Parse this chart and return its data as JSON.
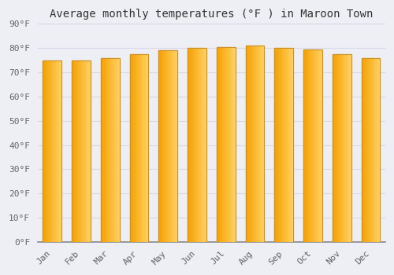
{
  "title": "Average monthly temperatures (°F ) in Maroon Town",
  "months": [
    "Jan",
    "Feb",
    "Mar",
    "Apr",
    "May",
    "Jun",
    "Jul",
    "Aug",
    "Sep",
    "Oct",
    "Nov",
    "Dec"
  ],
  "values": [
    75,
    75,
    76,
    77.5,
    79,
    80,
    80.5,
    81,
    80,
    79.5,
    77.5,
    76
  ],
  "bar_color_left": "#F5A623",
  "bar_color_right": "#FFD580",
  "bar_edge_color": "#C8922A",
  "background_color": "#EEEEF5",
  "plot_bg_color": "#EEEEF5",
  "grid_color": "#D8D8E8",
  "ylim": [
    0,
    90
  ],
  "ytick_step": 10,
  "title_fontsize": 10,
  "tick_fontsize": 8,
  "font_family": "monospace"
}
